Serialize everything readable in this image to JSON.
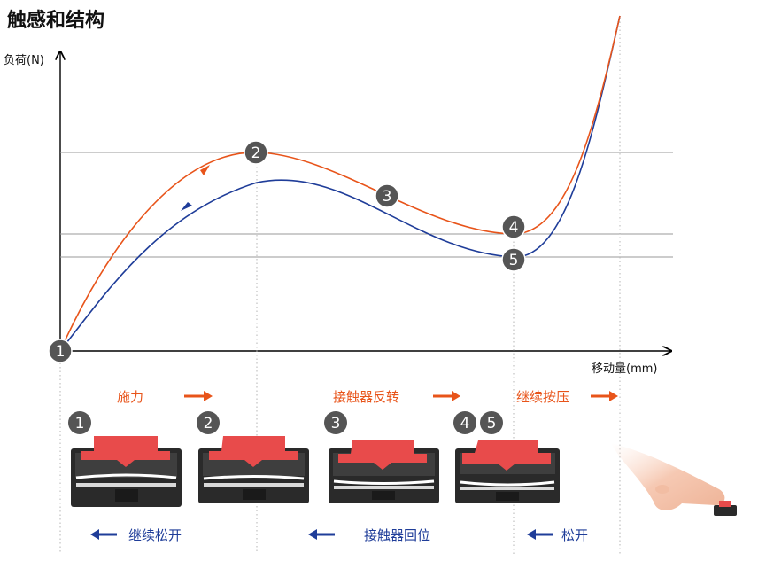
{
  "title": "触感和结构",
  "y_axis_label": "负荷(N)",
  "x_axis_label": "移动量(mm)",
  "points": [
    "1",
    "2",
    "3",
    "4",
    "5"
  ],
  "stage_labels": {
    "apply_force": "施力",
    "contact_flip": "接触器反转",
    "keep_pressing": "继续按压",
    "keep_releasing": "继续松开",
    "contact_return": "接触器回位",
    "release": "松开"
  },
  "switch_markers": [
    "1",
    "2",
    "3",
    "4",
    "5"
  ],
  "colors": {
    "press_curve": "#e8541a",
    "release_curve": "#1f3d99",
    "forward_label": "#e8541a",
    "backward_label": "#1f3d99",
    "marker_fill": "#555555",
    "actuator": "#e84b4b",
    "housing": "#2a2a2a",
    "gridline": "#9a9a9a"
  },
  "chart_data": {
    "type": "line",
    "title": "触感和结构",
    "xlabel": "移动量(mm)",
    "ylabel": "负荷(N)",
    "series": [
      {
        "name": "",
        "color": "#e8541a",
        "direction": "press"
      },
      {
        "name": "",
        "color": "#1f3d99",
        "direction": "release"
      }
    ]
  }
}
